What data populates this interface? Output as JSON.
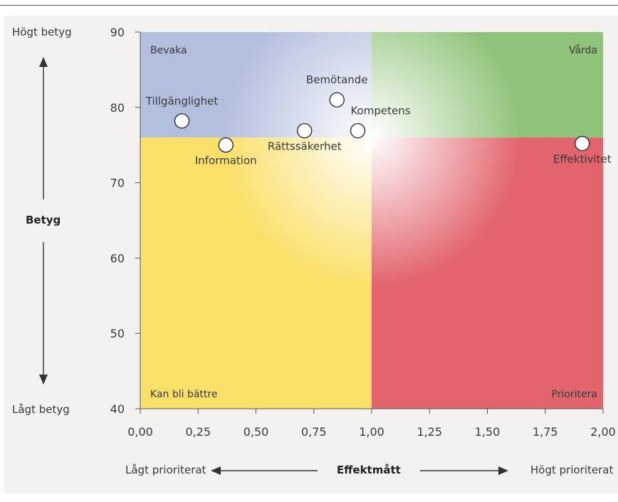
{
  "chart_data": {
    "type": "scatter",
    "xlim": [
      0,
      2
    ],
    "ylim": [
      40,
      90
    ],
    "x_ticks": [
      "0,00",
      "0,25",
      "0,50",
      "0,75",
      "1,00",
      "1,25",
      "1,50",
      "1,75",
      "2,00"
    ],
    "y_ticks": [
      "40",
      "50",
      "60",
      "70",
      "80",
      "90"
    ],
    "x_tick_values": [
      0,
      0.25,
      0.5,
      0.75,
      1,
      1.25,
      1.5,
      1.75,
      2
    ],
    "y_tick_values": [
      40,
      50,
      60,
      70,
      80,
      90
    ],
    "ylabel": "Betyg",
    "xlabel": "Effektmått",
    "y_high": "Högt betyg",
    "y_low": "Lågt betyg",
    "x_low": "Lågt prioriterat",
    "x_high": "Högt prioriterat",
    "quadrant_split": {
      "x": 1.0,
      "y": 76
    },
    "quadrants": {
      "top_left": "Bevaka",
      "top_right": "Vårda",
      "bottom_left": "Kan bli bättre",
      "bottom_right": "Prioritera"
    },
    "quadrant_colors": {
      "top_left": "#b3bfdf",
      "top_right": "#90c47a",
      "bottom_left": "#fbe06a",
      "bottom_right": "#e2646d"
    },
    "points": [
      {
        "name": "Tillgänglighet",
        "x": 0.18,
        "y": 78.2,
        "label_pos": "above"
      },
      {
        "name": "Information",
        "x": 0.37,
        "y": 75.0,
        "label_pos": "below"
      },
      {
        "name": "Rättssäkerhet",
        "x": 0.71,
        "y": 76.9,
        "label_pos": "below"
      },
      {
        "name": "Bemötande",
        "x": 0.85,
        "y": 81.0,
        "label_pos": "above"
      },
      {
        "name": "Kompetens",
        "x": 0.94,
        "y": 76.9,
        "label_pos": "above-right"
      },
      {
        "name": "Effektivitet",
        "x": 1.91,
        "y": 75.2,
        "label_pos": "below"
      }
    ]
  }
}
